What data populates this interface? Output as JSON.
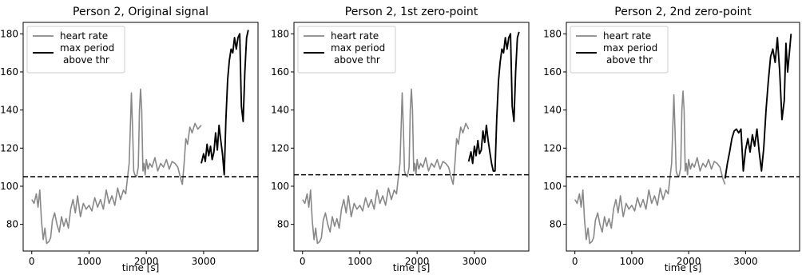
{
  "chart_data": [
    {
      "type": "line",
      "title": "Person 2, Original signal",
      "xlabel": "time [s]",
      "ylabel": "",
      "xlim": [
        -150,
        3950
      ],
      "ylim": [
        66,
        186
      ],
      "xticks": [
        0,
        1000,
        2000,
        3000
      ],
      "yticks": [
        80,
        100,
        120,
        140,
        160,
        180
      ],
      "threshold": 105,
      "legend": {
        "placement": "upper-left",
        "entries": [
          [
            "heart rate"
          ],
          [
            "max period",
            "above thr"
          ]
        ]
      },
      "series": [
        {
          "name": "heart rate",
          "color": "#888888",
          "x": [
            0,
            40,
            80,
            110,
            140,
            170,
            200,
            230,
            260,
            300,
            330,
            360,
            400,
            440,
            480,
            520,
            560,
            600,
            640,
            680,
            720,
            760,
            800,
            850,
            900,
            950,
            1000,
            1050,
            1100,
            1150,
            1200,
            1250,
            1300,
            1350,
            1400,
            1450,
            1500,
            1550,
            1600,
            1640,
            1670,
            1700,
            1720,
            1740,
            1760,
            1780,
            1800,
            1830,
            1860,
            1880,
            1900,
            1920,
            1940,
            1960,
            1980,
            2000,
            2030,
            2060,
            2100,
            2150,
            2200,
            2250,
            2300,
            2350,
            2400,
            2450,
            2500,
            2550,
            2600,
            2630,
            2660,
            2690,
            2720,
            2760,
            2800,
            2850,
            2900,
            2960
          ],
          "values": [
            93,
            91,
            96,
            89,
            98,
            82,
            72,
            78,
            70,
            71,
            73,
            82,
            86,
            80,
            76,
            84,
            79,
            83,
            78,
            88,
            93,
            86,
            95,
            84,
            91,
            88,
            90,
            87,
            94,
            89,
            93,
            88,
            98,
            91,
            95,
            90,
            99,
            93,
            98,
            96,
            104,
            112,
            130,
            149,
            130,
            108,
            106,
            105,
            110,
            140,
            151,
            140,
            108,
            112,
            106,
            114,
            109,
            112,
            110,
            115,
            108,
            112,
            110,
            114,
            109,
            113,
            112,
            110,
            104,
            101,
            112,
            125,
            122,
            131,
            128,
            133,
            130,
            132
          ]
        },
        {
          "name": "max period above thr",
          "color": "#000000",
          "x": [
            2960,
            3000,
            3030,
            3060,
            3090,
            3120,
            3150,
            3180,
            3210,
            3240,
            3270,
            3300,
            3330,
            3360,
            3390,
            3420,
            3450,
            3480,
            3510,
            3540,
            3570,
            3600,
            3630,
            3660,
            3690,
            3720,
            3750,
            3780
          ],
          "values": [
            112,
            117,
            113,
            122,
            116,
            121,
            114,
            118,
            128,
            119,
            132,
            124,
            117,
            106,
            135,
            156,
            166,
            172,
            170,
            178,
            172,
            178,
            180,
            142,
            134,
            160,
            178,
            182
          ]
        }
      ]
    },
    {
      "type": "line",
      "title": "Person 2, 1st zero-point",
      "xlabel": "time [s]",
      "ylabel": "",
      "xlim": [
        -150,
        3950
      ],
      "ylim": [
        66,
        186
      ],
      "xticks": [
        0,
        1000,
        2000,
        3000
      ],
      "yticks": [
        80,
        100,
        120,
        140,
        160,
        180
      ],
      "threshold": 106,
      "legend": {
        "placement": "upper-left",
        "entries": [
          [
            "heart rate"
          ],
          [
            "max period",
            "above thr"
          ]
        ]
      },
      "series": [
        {
          "name": "heart rate",
          "color": "#888888",
          "x": [
            0,
            40,
            80,
            110,
            140,
            170,
            200,
            230,
            260,
            300,
            330,
            360,
            400,
            440,
            480,
            520,
            560,
            600,
            640,
            680,
            720,
            760,
            800,
            850,
            900,
            950,
            1000,
            1050,
            1100,
            1150,
            1200,
            1250,
            1300,
            1350,
            1400,
            1450,
            1500,
            1550,
            1600,
            1640,
            1670,
            1700,
            1720,
            1740,
            1760,
            1780,
            1800,
            1830,
            1860,
            1880,
            1900,
            1920,
            1940,
            1960,
            1980,
            2000,
            2030,
            2060,
            2100,
            2150,
            2200,
            2250,
            2300,
            2350,
            2400,
            2450,
            2500,
            2550,
            2600,
            2630,
            2660,
            2690,
            2720,
            2760,
            2800,
            2850,
            2900
          ],
          "values": [
            93,
            91,
            96,
            89,
            98,
            82,
            72,
            78,
            70,
            71,
            73,
            82,
            86,
            80,
            76,
            84,
            79,
            83,
            78,
            88,
            93,
            86,
            95,
            84,
            91,
            88,
            90,
            87,
            94,
            89,
            93,
            88,
            98,
            91,
            95,
            90,
            99,
            93,
            98,
            96,
            104,
            112,
            130,
            149,
            130,
            108,
            106,
            105,
            110,
            140,
            151,
            140,
            108,
            112,
            106,
            114,
            109,
            112,
            110,
            115,
            108,
            112,
            110,
            114,
            109,
            113,
            112,
            110,
            104,
            101,
            112,
            125,
            122,
            131,
            128,
            133,
            130
          ]
        },
        {
          "name": "max period above thr",
          "color": "#000000",
          "x": [
            2900,
            2940,
            2970,
            3000,
            3030,
            3060,
            3090,
            3120,
            3150,
            3180,
            3210,
            3240,
            3270,
            3300,
            3330,
            3360,
            3390,
            3420,
            3450,
            3480,
            3510,
            3540,
            3570,
            3600,
            3630,
            3660,
            3690,
            3720,
            3750,
            3780
          ],
          "values": [
            113,
            118,
            112,
            121,
            116,
            124,
            117,
            119,
            129,
            123,
            132,
            124,
            118,
            112,
            108,
            108,
            135,
            155,
            165,
            172,
            170,
            178,
            172,
            178,
            180,
            142,
            134,
            160,
            178,
            181
          ]
        }
      ]
    },
    {
      "type": "line",
      "title": "Person 2, 2nd zero-point",
      "xlabel": "time [s]",
      "ylabel": "",
      "xlim": [
        -150,
        3950
      ],
      "ylim": [
        66,
        186
      ],
      "xticks": [
        0,
        1000,
        2000,
        3000
      ],
      "yticks": [
        80,
        100,
        120,
        140,
        160,
        180
      ],
      "threshold": 105,
      "legend": {
        "placement": "upper-left",
        "entries": [
          [
            "heart rate"
          ],
          [
            "max period",
            "above thr"
          ]
        ]
      },
      "series": [
        {
          "name": "heart rate",
          "color": "#888888",
          "x": [
            0,
            40,
            80,
            110,
            140,
            170,
            200,
            230,
            260,
            300,
            330,
            360,
            400,
            440,
            480,
            520,
            560,
            600,
            640,
            680,
            720,
            760,
            800,
            850,
            900,
            950,
            1000,
            1050,
            1100,
            1150,
            1200,
            1250,
            1300,
            1350,
            1400,
            1450,
            1500,
            1550,
            1600,
            1640,
            1670,
            1700,
            1720,
            1740,
            1760,
            1780,
            1800,
            1830,
            1860,
            1880,
            1900,
            1920,
            1940,
            1960,
            1980,
            2000,
            2030,
            2060,
            2100,
            2150,
            2200,
            2250,
            2300,
            2350,
            2400,
            2450,
            2500,
            2550,
            2600,
            2640
          ],
          "values": [
            93,
            91,
            96,
            89,
            98,
            82,
            72,
            78,
            70,
            71,
            73,
            82,
            86,
            80,
            76,
            84,
            79,
            83,
            78,
            88,
            93,
            86,
            95,
            84,
            91,
            88,
            90,
            87,
            94,
            89,
            93,
            88,
            98,
            91,
            95,
            90,
            99,
            93,
            98,
            96,
            104,
            112,
            130,
            148,
            130,
            108,
            106,
            105,
            110,
            140,
            150,
            140,
            108,
            112,
            106,
            114,
            109,
            112,
            110,
            115,
            108,
            112,
            110,
            114,
            109,
            113,
            112,
            110,
            104,
            101
          ]
        },
        {
          "name": "max period above thr",
          "color": "#000000",
          "x": [
            2640,
            2680,
            2720,
            2760,
            2800,
            2840,
            2880,
            2920,
            2960,
            3000,
            3040,
            3080,
            3120,
            3160,
            3200,
            3240,
            3280,
            3320,
            3360,
            3400,
            3440,
            3480,
            3520,
            3560,
            3600,
            3640,
            3680,
            3710,
            3740,
            3770,
            3800
          ],
          "values": [
            104,
            112,
            118,
            125,
            129,
            130,
            128,
            130,
            108,
            119,
            125,
            118,
            127,
            121,
            130,
            118,
            108,
            120,
            140,
            155,
            168,
            172,
            165,
            178,
            160,
            135,
            145,
            175,
            160,
            170,
            180
          ]
        }
      ]
    }
  ]
}
